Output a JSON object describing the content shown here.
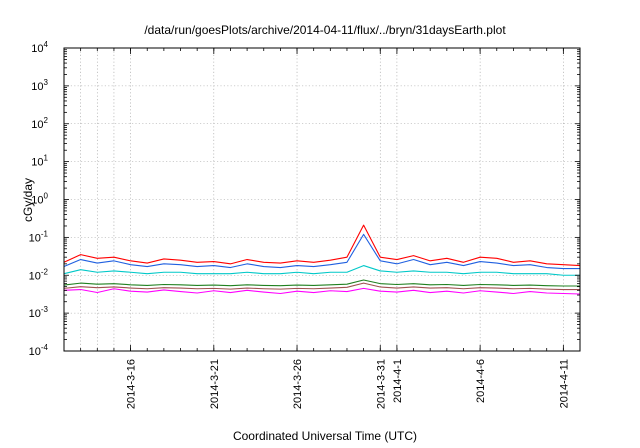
{
  "chart_data": {
    "type": "line",
    "title": "/data/run/goesPlots/archive/2014-04-11/flux/../bryn/31daysEarth.plot",
    "xlabel": "Coordinated Universal Time (UTC)",
    "ylabel": "cGy/day",
    "yscale": "log",
    "ylim": [
      0.0001,
      10000
    ],
    "xlim": [
      "2014-03-12",
      "2014-04-12"
    ],
    "grid": true,
    "legend": "none",
    "x_ticks": [
      {
        "date": "2014-03-16",
        "label": "2014-3-16"
      },
      {
        "date": "2014-03-21",
        "label": "2014-3-21"
      },
      {
        "date": "2014-03-26",
        "label": "2014-3-26"
      },
      {
        "date": "2014-03-31",
        "label": "2014-3-31"
      },
      {
        "date": "2014-04-01",
        "label": "2014-4-1"
      },
      {
        "date": "2014-04-06",
        "label": "2014-4-6"
      },
      {
        "date": "2014-04-11",
        "label": "2014-4-11"
      }
    ],
    "y_ticks": [
      {
        "value": 0.0001,
        "base": "10",
        "exp": "-4"
      },
      {
        "value": 0.001,
        "base": "10",
        "exp": "-3"
      },
      {
        "value": 0.01,
        "base": "10",
        "exp": "-2"
      },
      {
        "value": 0.1,
        "base": "10",
        "exp": "-1"
      },
      {
        "value": 1,
        "base": "10",
        "exp": "0"
      },
      {
        "value": 10,
        "base": "10",
        "exp": "1"
      },
      {
        "value": 100,
        "base": "10",
        "exp": "2"
      },
      {
        "value": 1000,
        "base": "10",
        "exp": "3"
      },
      {
        "value": 10000,
        "base": "10",
        "exp": "4"
      }
    ],
    "x_vlines": [
      "2014-03-13",
      "2014-03-14",
      "2014-03-15",
      "2014-03-16",
      "2014-03-21",
      "2014-03-26",
      "2014-03-31",
      "2014-04-01",
      "2014-04-06",
      "2014-04-11"
    ],
    "series": [
      {
        "color": "#ff0000",
        "points": [
          [
            "2014-03-12",
            0.022
          ],
          [
            "2014-03-13",
            0.035
          ],
          [
            "2014-03-14",
            0.028
          ],
          [
            "2014-03-15",
            0.03
          ],
          [
            "2014-03-16",
            0.024
          ],
          [
            "2014-03-17",
            0.021
          ],
          [
            "2014-03-18",
            0.027
          ],
          [
            "2014-03-19",
            0.025
          ],
          [
            "2014-03-20",
            0.022
          ],
          [
            "2014-03-21",
            0.023
          ],
          [
            "2014-03-22",
            0.02
          ],
          [
            "2014-03-23",
            0.026
          ],
          [
            "2014-03-24",
            0.022
          ],
          [
            "2014-03-25",
            0.021
          ],
          [
            "2014-03-26",
            0.024
          ],
          [
            "2014-03-27",
            0.022
          ],
          [
            "2014-03-28",
            0.025
          ],
          [
            "2014-03-29",
            0.03
          ],
          [
            "2014-03-30",
            0.21
          ],
          [
            "2014-03-31",
            0.03
          ],
          [
            "2014-04-01",
            0.026
          ],
          [
            "2014-04-02",
            0.033
          ],
          [
            "2014-04-03",
            0.024
          ],
          [
            "2014-04-04",
            0.028
          ],
          [
            "2014-04-05",
            0.022
          ],
          [
            "2014-04-06",
            0.03
          ],
          [
            "2014-04-07",
            0.028
          ],
          [
            "2014-04-08",
            0.022
          ],
          [
            "2014-04-09",
            0.024
          ],
          [
            "2014-04-10",
            0.02
          ],
          [
            "2014-04-11",
            0.019
          ],
          [
            "2014-04-12",
            0.018
          ]
        ]
      },
      {
        "color": "#2060e0",
        "points": [
          [
            "2014-03-12",
            0.017
          ],
          [
            "2014-03-13",
            0.026
          ],
          [
            "2014-03-14",
            0.021
          ],
          [
            "2014-03-15",
            0.024
          ],
          [
            "2014-03-16",
            0.019
          ],
          [
            "2014-03-17",
            0.017
          ],
          [
            "2014-03-18",
            0.02
          ],
          [
            "2014-03-19",
            0.019
          ],
          [
            "2014-03-20",
            0.017
          ],
          [
            "2014-03-21",
            0.018
          ],
          [
            "2014-03-22",
            0.016
          ],
          [
            "2014-03-23",
            0.02
          ],
          [
            "2014-03-24",
            0.017
          ],
          [
            "2014-03-25",
            0.016
          ],
          [
            "2014-03-26",
            0.018
          ],
          [
            "2014-03-27",
            0.017
          ],
          [
            "2014-03-28",
            0.019
          ],
          [
            "2014-03-29",
            0.022
          ],
          [
            "2014-03-30",
            0.12
          ],
          [
            "2014-03-31",
            0.024
          ],
          [
            "2014-04-01",
            0.02
          ],
          [
            "2014-04-02",
            0.026
          ],
          [
            "2014-04-03",
            0.019
          ],
          [
            "2014-04-04",
            0.022
          ],
          [
            "2014-04-05",
            0.018
          ],
          [
            "2014-04-06",
            0.023
          ],
          [
            "2014-04-07",
            0.021
          ],
          [
            "2014-04-08",
            0.018
          ],
          [
            "2014-04-09",
            0.019
          ],
          [
            "2014-04-10",
            0.016
          ],
          [
            "2014-04-11",
            0.015
          ],
          [
            "2014-04-12",
            0.015
          ]
        ]
      },
      {
        "color": "#00c8c8",
        "points": [
          [
            "2014-03-12",
            0.011
          ],
          [
            "2014-03-13",
            0.014
          ],
          [
            "2014-03-14",
            0.012
          ],
          [
            "2014-03-15",
            0.013
          ],
          [
            "2014-03-16",
            0.012
          ],
          [
            "2014-03-17",
            0.011
          ],
          [
            "2014-03-18",
            0.012
          ],
          [
            "2014-03-19",
            0.012
          ],
          [
            "2014-03-20",
            0.011
          ],
          [
            "2014-03-21",
            0.011
          ],
          [
            "2014-03-22",
            0.011
          ],
          [
            "2014-03-23",
            0.012
          ],
          [
            "2014-03-24",
            0.011
          ],
          [
            "2014-03-25",
            0.011
          ],
          [
            "2014-03-26",
            0.012
          ],
          [
            "2014-03-27",
            0.011
          ],
          [
            "2014-03-28",
            0.012
          ],
          [
            "2014-03-29",
            0.012
          ],
          [
            "2014-03-30",
            0.018
          ],
          [
            "2014-03-31",
            0.013
          ],
          [
            "2014-04-01",
            0.012
          ],
          [
            "2014-04-02",
            0.013
          ],
          [
            "2014-04-03",
            0.012
          ],
          [
            "2014-04-04",
            0.012
          ],
          [
            "2014-04-05",
            0.011
          ],
          [
            "2014-04-06",
            0.012
          ],
          [
            "2014-04-07",
            0.012
          ],
          [
            "2014-04-08",
            0.011
          ],
          [
            "2014-04-09",
            0.011
          ],
          [
            "2014-04-10",
            0.011
          ],
          [
            "2014-04-11",
            0.01
          ],
          [
            "2014-04-12",
            0.01
          ]
        ]
      },
      {
        "color": "#208020",
        "points": [
          [
            "2014-03-12",
            0.0055
          ],
          [
            "2014-03-13",
            0.0062
          ],
          [
            "2014-03-14",
            0.0058
          ],
          [
            "2014-03-15",
            0.006
          ],
          [
            "2014-03-16",
            0.0056
          ],
          [
            "2014-03-17",
            0.0054
          ],
          [
            "2014-03-18",
            0.0057
          ],
          [
            "2014-03-19",
            0.0056
          ],
          [
            "2014-03-20",
            0.0054
          ],
          [
            "2014-03-21",
            0.0055
          ],
          [
            "2014-03-22",
            0.0053
          ],
          [
            "2014-03-23",
            0.0056
          ],
          [
            "2014-03-24",
            0.0054
          ],
          [
            "2014-03-25",
            0.0053
          ],
          [
            "2014-03-26",
            0.0055
          ],
          [
            "2014-03-27",
            0.0054
          ],
          [
            "2014-03-28",
            0.0056
          ],
          [
            "2014-03-29",
            0.0058
          ],
          [
            "2014-03-30",
            0.0075
          ],
          [
            "2014-03-31",
            0.006
          ],
          [
            "2014-04-01",
            0.0057
          ],
          [
            "2014-04-02",
            0.006
          ],
          [
            "2014-04-03",
            0.0056
          ],
          [
            "2014-04-04",
            0.0057
          ],
          [
            "2014-04-05",
            0.0054
          ],
          [
            "2014-04-06",
            0.0057
          ],
          [
            "2014-04-07",
            0.0056
          ],
          [
            "2014-04-08",
            0.0054
          ],
          [
            "2014-04-09",
            0.0055
          ],
          [
            "2014-04-10",
            0.0053
          ],
          [
            "2014-04-11",
            0.0052
          ],
          [
            "2014-04-12",
            0.0052
          ]
        ]
      },
      {
        "color": "#a05050",
        "points": [
          [
            "2014-03-12",
            0.0045
          ],
          [
            "2014-03-13",
            0.005
          ],
          [
            "2014-03-14",
            0.0047
          ],
          [
            "2014-03-15",
            0.0049
          ],
          [
            "2014-03-16",
            0.0046
          ],
          [
            "2014-03-17",
            0.0044
          ],
          [
            "2014-03-18",
            0.0047
          ],
          [
            "2014-03-19",
            0.0046
          ],
          [
            "2014-03-20",
            0.0044
          ],
          [
            "2014-03-21",
            0.0045
          ],
          [
            "2014-03-22",
            0.0043
          ],
          [
            "2014-03-23",
            0.0046
          ],
          [
            "2014-03-24",
            0.0044
          ],
          [
            "2014-03-25",
            0.0043
          ],
          [
            "2014-03-26",
            0.0045
          ],
          [
            "2014-03-27",
            0.0044
          ],
          [
            "2014-03-28",
            0.0046
          ],
          [
            "2014-03-29",
            0.0048
          ],
          [
            "2014-03-30",
            0.0062
          ],
          [
            "2014-03-31",
            0.0049
          ],
          [
            "2014-04-01",
            0.0046
          ],
          [
            "2014-04-02",
            0.0049
          ],
          [
            "2014-04-03",
            0.0046
          ],
          [
            "2014-04-04",
            0.0047
          ],
          [
            "2014-04-05",
            0.0044
          ],
          [
            "2014-04-06",
            0.0047
          ],
          [
            "2014-04-07",
            0.0046
          ],
          [
            "2014-04-08",
            0.0044
          ],
          [
            "2014-04-09",
            0.0045
          ],
          [
            "2014-04-10",
            0.0043
          ],
          [
            "2014-04-11",
            0.0042
          ],
          [
            "2014-04-12",
            0.0042
          ]
        ]
      },
      {
        "color": "#ff00ff",
        "points": [
          [
            "2014-03-12",
            0.004
          ],
          [
            "2014-03-13",
            0.0042
          ],
          [
            "2014-03-14",
            0.0035
          ],
          [
            "2014-03-15",
            0.0044
          ],
          [
            "2014-03-16",
            0.0038
          ],
          [
            "2014-03-17",
            0.0036
          ],
          [
            "2014-03-18",
            0.0041
          ],
          [
            "2014-03-19",
            0.0037
          ],
          [
            "2014-03-20",
            0.0034
          ],
          [
            "2014-03-21",
            0.0039
          ],
          [
            "2014-03-22",
            0.0035
          ],
          [
            "2014-03-23",
            0.004
          ],
          [
            "2014-03-24",
            0.0036
          ],
          [
            "2014-03-25",
            0.0033
          ],
          [
            "2014-03-26",
            0.0038
          ],
          [
            "2014-03-27",
            0.0035
          ],
          [
            "2014-03-28",
            0.0039
          ],
          [
            "2014-03-29",
            0.0037
          ],
          [
            "2014-03-30",
            0.0045
          ],
          [
            "2014-03-31",
            0.0038
          ],
          [
            "2014-04-01",
            0.0036
          ],
          [
            "2014-04-02",
            0.004
          ],
          [
            "2014-04-03",
            0.0035
          ],
          [
            "2014-04-04",
            0.0038
          ],
          [
            "2014-04-05",
            0.0034
          ],
          [
            "2014-04-06",
            0.0039
          ],
          [
            "2014-04-07",
            0.0036
          ],
          [
            "2014-04-08",
            0.0033
          ],
          [
            "2014-04-09",
            0.0037
          ],
          [
            "2014-04-10",
            0.0034
          ],
          [
            "2014-04-11",
            0.0033
          ],
          [
            "2014-04-12",
            0.0032
          ]
        ]
      }
    ]
  }
}
